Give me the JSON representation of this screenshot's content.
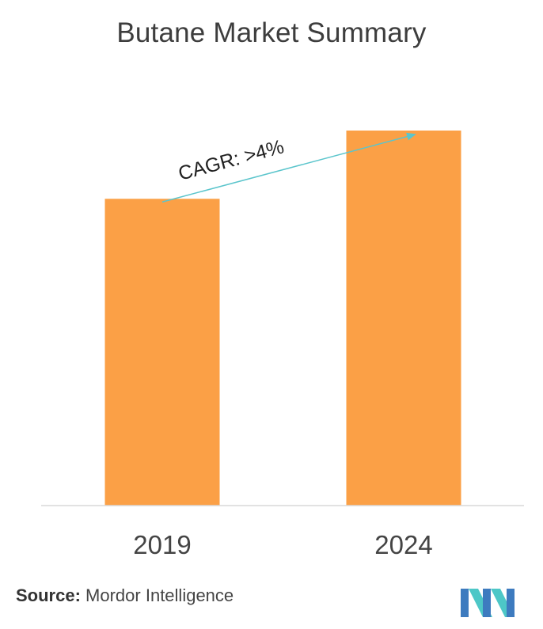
{
  "chart_data": {
    "type": "bar",
    "title": "Butane Market Summary",
    "categories": [
      "2019",
      "2024"
    ],
    "values": [
      81.8,
      100
    ],
    "ylim": [
      0,
      100
    ],
    "xlabel": "",
    "ylabel": "",
    "grid": false,
    "annotation": {
      "text": "CAGR: >4%"
    },
    "colors": {
      "bar": "#FBA046",
      "arrow": "#5BC5CC",
      "axis": "#d9d9d9",
      "tick_text": "#444444"
    }
  },
  "source": {
    "label": "Source:",
    "value": "Mordor Intelligence"
  },
  "logo": {
    "name": "mordor-intelligence-logo",
    "colors": [
      "#3D7BBF",
      "#4DC7C7"
    ]
  }
}
